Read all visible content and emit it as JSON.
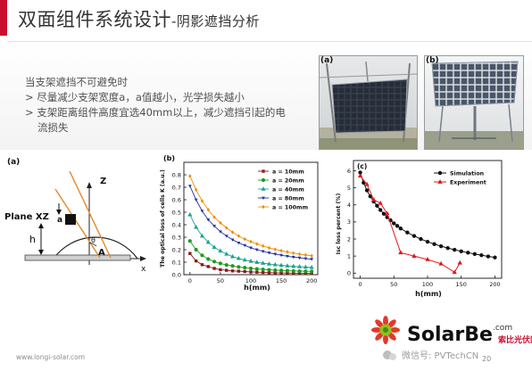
{
  "header": {
    "title_main": "双面组件系统设计",
    "title_sub": "-阴影遮挡分析"
  },
  "bullets": {
    "lead": "当支架遮挡不可避免时",
    "item1": "> 尽量减少支架宽度a，a值越小，光学损失越小",
    "item2_line1": "> 支架距离组件高度宜选40mm以上，减少遮挡引起的电",
    "item2_line2": "流损失"
  },
  "photos": {
    "a_label": "(a)",
    "b_label": "(b)"
  },
  "diagram": {
    "panel_label": "(a)",
    "z_label": "Z",
    "plane_label": "Plane XZ",
    "a_label": "a",
    "h_label": "h",
    "theta_label": "θ",
    "A_label": "A",
    "x_label": "x"
  },
  "chart_b": {
    "panel_label": "(b)",
    "chart_data": {
      "type": "line",
      "xlabel": "h(mm)",
      "ylabel": "The optical loss of cells K (a.u.)",
      "xlim": [
        -10,
        210
      ],
      "ylim": [
        0.0,
        0.9
      ],
      "xticks": [
        "0",
        "50",
        "100",
        "150",
        "200"
      ],
      "yticks": [
        "0.0",
        "0.1",
        "0.2",
        "0.3",
        "0.4",
        "0.5",
        "0.6",
        "0.7",
        "0.8"
      ],
      "x": [
        0,
        10,
        20,
        30,
        40,
        50,
        60,
        70,
        80,
        90,
        100,
        110,
        120,
        130,
        140,
        150,
        160,
        170,
        180,
        190,
        200
      ],
      "legend_position": "top-right",
      "series": [
        {
          "name": "a = 10mm",
          "color": "#8b1a1a",
          "marker": "square",
          "values": [
            0.17,
            0.11,
            0.08,
            0.065,
            0.05,
            0.04,
            0.035,
            0.03,
            0.028,
            0.025,
            0.022,
            0.02,
            0.018,
            0.016,
            0.015,
            0.014,
            0.013,
            0.012,
            0.011,
            0.01,
            0.01
          ]
        },
        {
          "name": "a = 20mm",
          "color": "#1e9b1e",
          "marker": "circle",
          "values": [
            0.27,
            0.2,
            0.155,
            0.125,
            0.105,
            0.09,
            0.078,
            0.07,
            0.062,
            0.056,
            0.05,
            0.046,
            0.042,
            0.039,
            0.036,
            0.034,
            0.032,
            0.03,
            0.028,
            0.027,
            0.026
          ]
        },
        {
          "name": "a = 40mm",
          "color": "#1aa38f",
          "marker": "triangle-up",
          "values": [
            0.48,
            0.38,
            0.31,
            0.26,
            0.22,
            0.19,
            0.165,
            0.145,
            0.13,
            0.118,
            0.108,
            0.099,
            0.092,
            0.086,
            0.08,
            0.075,
            0.071,
            0.067,
            0.064,
            0.061,
            0.058
          ]
        },
        {
          "name": "a = 80mm",
          "color": "#1f2f9f",
          "marker": "triangle-down",
          "values": [
            0.71,
            0.6,
            0.51,
            0.44,
            0.39,
            0.345,
            0.31,
            0.28,
            0.255,
            0.235,
            0.215,
            0.2,
            0.187,
            0.175,
            0.165,
            0.156,
            0.148,
            0.141,
            0.135,
            0.129,
            0.124
          ]
        },
        {
          "name": "a = 100mm",
          "color": "#f08c00",
          "marker": "diamond",
          "values": [
            0.79,
            0.68,
            0.59,
            0.52,
            0.46,
            0.415,
            0.375,
            0.34,
            0.31,
            0.285,
            0.265,
            0.246,
            0.23,
            0.215,
            0.203,
            0.192,
            0.182,
            0.173,
            0.165,
            0.158,
            0.151
          ]
        }
      ]
    }
  },
  "chart_c": {
    "panel_label": "(c)",
    "chart_data": {
      "type": "line",
      "xlabel": "h(mm)",
      "ylabel": "Isc loss percent (%)",
      "xlim": [
        -10,
        210
      ],
      "ylim": [
        -0.3,
        6.6
      ],
      "xticks": [
        "0",
        "50",
        "100",
        "150",
        "200"
      ],
      "yticks": [
        "0",
        "1",
        "2",
        "3",
        "4",
        "5",
        "6"
      ],
      "legend_position": "top-right",
      "series": [
        {
          "name": "Simulation",
          "color": "#111111",
          "marker": "circle",
          "x": [
            0,
            5,
            10,
            15,
            20,
            25,
            30,
            35,
            40,
            45,
            50,
            55,
            60,
            70,
            80,
            90,
            100,
            110,
            120,
            130,
            140,
            150,
            160,
            170,
            180,
            190,
            200
          ],
          "values": [
            5.9,
            5.3,
            4.85,
            4.5,
            4.2,
            3.95,
            3.7,
            3.48,
            3.28,
            3.1,
            2.92,
            2.77,
            2.62,
            2.38,
            2.18,
            2.0,
            1.84,
            1.7,
            1.58,
            1.47,
            1.37,
            1.28,
            1.2,
            1.12,
            1.05,
            0.98,
            0.92
          ]
        },
        {
          "name": "Experiment",
          "color": "#e0191e",
          "marker": "triangle-up",
          "x": [
            0,
            10,
            20,
            30,
            40,
            60,
            80,
            100,
            120,
            140,
            148
          ],
          "values": [
            5.7,
            5.2,
            4.3,
            4.1,
            3.5,
            1.2,
            1.0,
            0.8,
            0.55,
            0.05,
            0.6
          ]
        }
      ]
    }
  },
  "footer": {
    "url": "www.longi-solar.com",
    "page": "20"
  },
  "watermark": {
    "brand": "SolarBe",
    "brand_suffix": ".com",
    "cn_name": "索比光伏网",
    "wechat": "微信号: PVTechCN"
  }
}
